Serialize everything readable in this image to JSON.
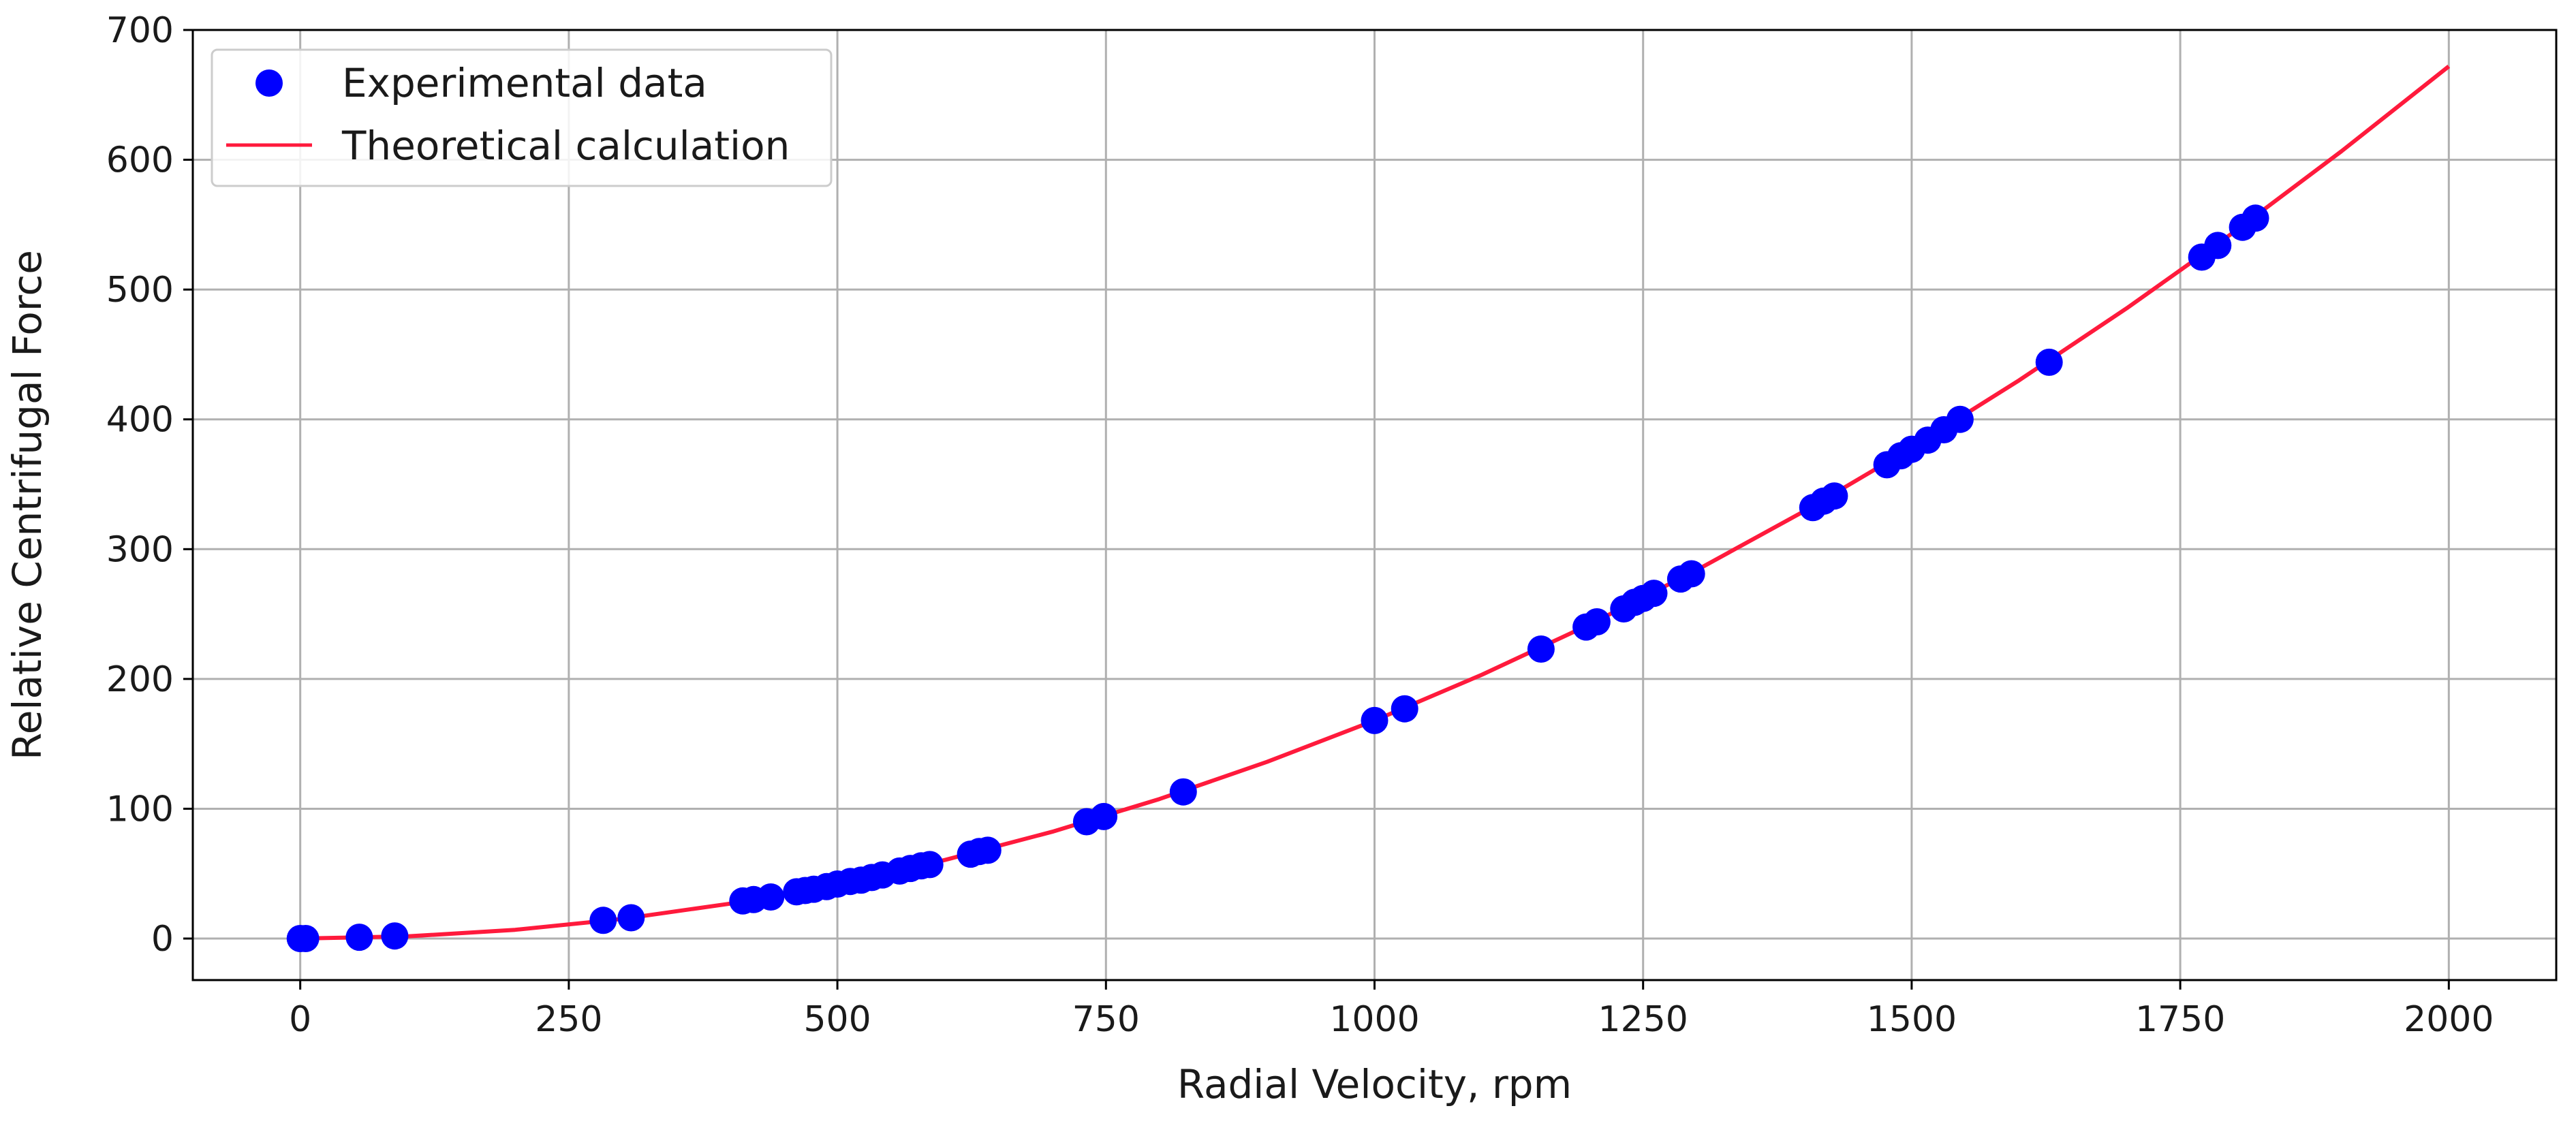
{
  "chart_data": {
    "type": "scatter",
    "title": "",
    "xlabel": "Radial Velocity, rpm",
    "ylabel": "Relative Centrifugal Force",
    "xlim": [
      -100,
      2100
    ],
    "ylim": [
      -32,
      700
    ],
    "xticks": [
      0,
      250,
      500,
      750,
      1000,
      1250,
      1500,
      1750,
      2000
    ],
    "yticks": [
      0,
      100,
      200,
      300,
      400,
      500,
      600,
      700
    ],
    "grid": true,
    "legend_position": "top-left",
    "series": [
      {
        "name": "Experimental data",
        "kind": "scatter",
        "color": "#0000ff",
        "points": [
          [
            0,
            0
          ],
          [
            5,
            0
          ],
          [
            55,
            1
          ],
          [
            88,
            2
          ],
          [
            282,
            14
          ],
          [
            308,
            16
          ],
          [
            412,
            29
          ],
          [
            422,
            30
          ],
          [
            438,
            32
          ],
          [
            462,
            36
          ],
          [
            470,
            37
          ],
          [
            478,
            38
          ],
          [
            490,
            40
          ],
          [
            500,
            42
          ],
          [
            512,
            44
          ],
          [
            522,
            45
          ],
          [
            532,
            47
          ],
          [
            542,
            49
          ],
          [
            558,
            52
          ],
          [
            568,
            54
          ],
          [
            578,
            56
          ],
          [
            586,
            57
          ],
          [
            624,
            65
          ],
          [
            632,
            67
          ],
          [
            640,
            68
          ],
          [
            732,
            90
          ],
          [
            748,
            94
          ],
          [
            822,
            113
          ],
          [
            1000,
            168
          ],
          [
            1028,
            177
          ],
          [
            1155,
            223
          ],
          [
            1197,
            240
          ],
          [
            1207,
            244
          ],
          [
            1232,
            254
          ],
          [
            1242,
            259
          ],
          [
            1250,
            262
          ],
          [
            1260,
            266
          ],
          [
            1285,
            277
          ],
          [
            1295,
            281
          ],
          [
            1408,
            332
          ],
          [
            1418,
            337
          ],
          [
            1428,
            341
          ],
          [
            1477,
            365
          ],
          [
            1490,
            372
          ],
          [
            1500,
            377
          ],
          [
            1515,
            384
          ],
          [
            1530,
            392
          ],
          [
            1545,
            400
          ],
          [
            1628,
            444
          ],
          [
            1770,
            525
          ],
          [
            1785,
            534
          ],
          [
            1808,
            548
          ],
          [
            1820,
            555
          ]
        ]
      },
      {
        "name": "Theoretical calculation",
        "kind": "line",
        "color": "#ff1a3c",
        "model": "y = 1.68e-4 * x^2",
        "x": [
          0,
          100,
          200,
          300,
          400,
          500,
          600,
          700,
          800,
          900,
          1000,
          1100,
          1200,
          1300,
          1400,
          1500,
          1600,
          1700,
          1800,
          1900,
          2000
        ],
        "y": [
          0,
          1.7,
          6.7,
          15.1,
          26.9,
          42,
          60.5,
          82.3,
          107.5,
          136.1,
          168,
          203.3,
          241.9,
          283.9,
          329.3,
          378,
          430.1,
          485.5,
          544.3,
          606.5,
          672
        ]
      }
    ]
  }
}
